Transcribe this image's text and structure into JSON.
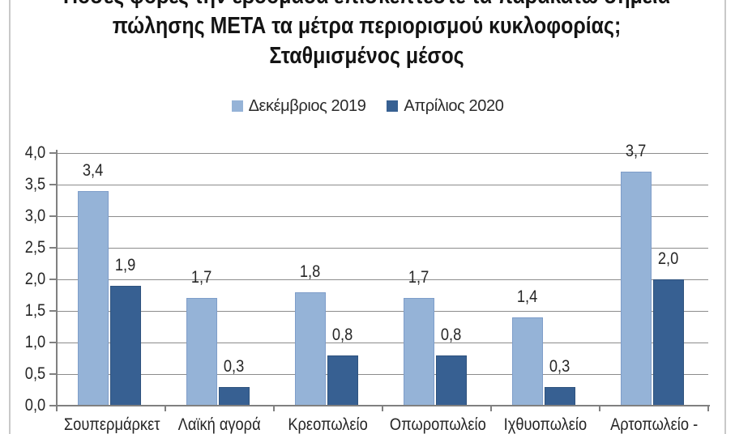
{
  "chart_data": {
    "type": "bar",
    "title_lines": [
      "Πόσες φορές την εβδομάδα επισκέπτεστε τα παρακάτω σημεία",
      "πώλησης ΜΕΤΑ τα μέτρα περιορισμού κυκλοφορίας;",
      "Σταθμισμένος μέσος"
    ],
    "title": "Πόσες φορές την εβδομάδα επισκέπτεστε τα παρακάτω σημεία πώλησης ΜΕΤΑ τα μέτρα περιορισμού κυκλοφορίας; Σταθμισμένος μέσος",
    "categories": [
      "Σουπερμάρκετ",
      "Λαϊκή αγορά",
      "Κρεοπωλείο",
      "Οπωροπωλείο",
      "Ιχθυοπωλείο",
      "Αρτοπωλείο -"
    ],
    "series": [
      {
        "name": "Δεκέμβριος 2019",
        "color": "#95B3D7",
        "border_color": "#7E9DC9",
        "values": [
          3.4,
          1.7,
          1.8,
          1.7,
          1.4,
          3.7
        ],
        "value_labels": [
          "3,4",
          "1,7",
          "1,8",
          "1,7",
          "1,4",
          "3,7"
        ]
      },
      {
        "name": "Απρίλιος 2020",
        "color": "#376092",
        "border_color": "#2F537E",
        "values": [
          1.9,
          0.3,
          0.8,
          0.8,
          0.3,
          2.0
        ],
        "value_labels": [
          "1,9",
          "0,3",
          "0,8",
          "0,8",
          "0,3",
          "2,0"
        ]
      }
    ],
    "ylim": [
      0,
      4
    ],
    "ytick_values": [
      4,
      3.5,
      3,
      2.5,
      2,
      1.5,
      1,
      0.5,
      0
    ],
    "ytick_labels": [
      "4,0",
      "3,5",
      "3,0",
      "2,5",
      "2,0",
      "1,5",
      "1,0",
      "0,5",
      "0,0"
    ],
    "decimal_separator": ",",
    "grid": true,
    "grid_color": "#8c8c8c",
    "axis_color": "#808080",
    "legend_position": "top-center",
    "xlabel": "",
    "ylabel": ""
  }
}
